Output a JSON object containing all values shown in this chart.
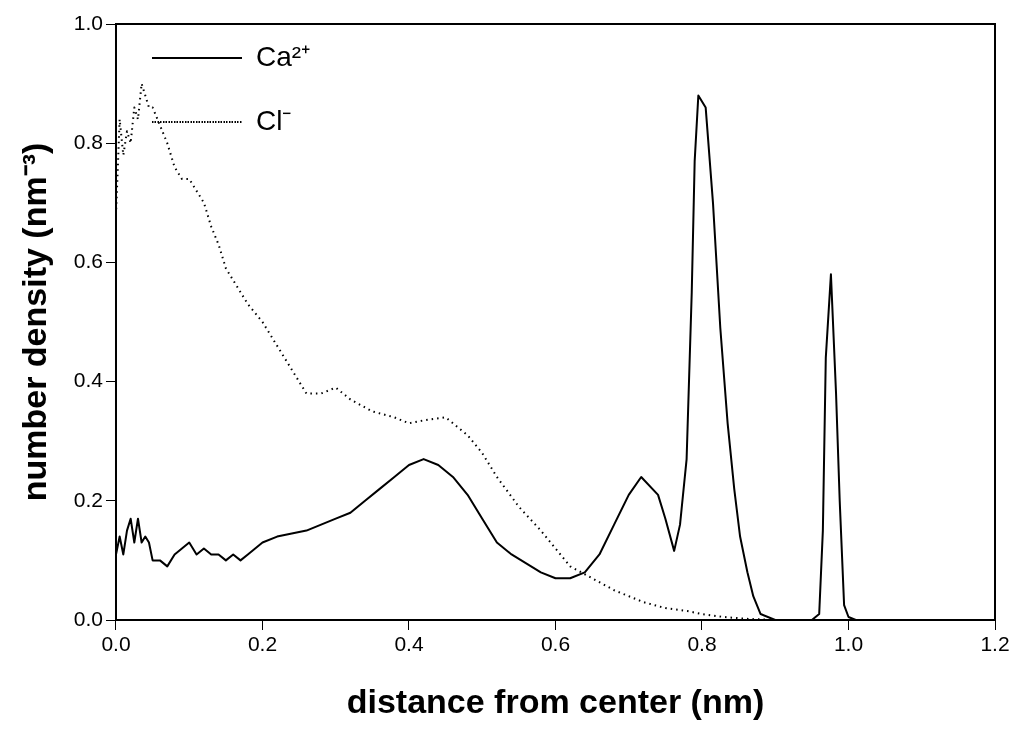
{
  "chart_data": {
    "type": "line",
    "xlabel": "distance from center (nm)",
    "ylabel": "number density (nm⁻³)",
    "xlim": [
      0,
      1.2
    ],
    "ylim": [
      0,
      1.0
    ],
    "xticks": [
      {
        "value": 0,
        "label": "0.0"
      },
      {
        "value": 0.2,
        "label": "0.2"
      },
      {
        "value": 0.4,
        "label": "0.4"
      },
      {
        "value": 0.6,
        "label": "0.6"
      },
      {
        "value": 0.8,
        "label": "0.8"
      },
      {
        "value": 1.0,
        "label": "1.0"
      },
      {
        "value": 1.2,
        "label": "1.2"
      }
    ],
    "yticks": [
      {
        "value": 0,
        "label": "0.0"
      },
      {
        "value": 0.2,
        "label": "0.2"
      },
      {
        "value": 0.4,
        "label": "0.4"
      },
      {
        "value": 0.6,
        "label": "0.6"
      },
      {
        "value": 0.8,
        "label": "0.8"
      },
      {
        "value": 1.0,
        "label": "1.0"
      }
    ],
    "grid": false,
    "legend": "top left",
    "marker": "none",
    "series": [
      {
        "name": "Ca²⁺",
        "color": "#000000",
        "line_style": "solid",
        "x": [
          0,
          0.005,
          0.01,
          0.015,
          0.02,
          0.025,
          0.03,
          0.035,
          0.04,
          0.045,
          0.05,
          0.06,
          0.07,
          0.08,
          0.09,
          0.1,
          0.11,
          0.12,
          0.13,
          0.14,
          0.15,
          0.16,
          0.17,
          0.18,
          0.19,
          0.2,
          0.22,
          0.24,
          0.26,
          0.28,
          0.3,
          0.32,
          0.34,
          0.36,
          0.38,
          0.4,
          0.42,
          0.44,
          0.46,
          0.48,
          0.5,
          0.52,
          0.54,
          0.56,
          0.58,
          0.6,
          0.62,
          0.64,
          0.66,
          0.68,
          0.7,
          0.717,
          0.74,
          0.75,
          0.762,
          0.77,
          0.779,
          0.786,
          0.79,
          0.795,
          0.805,
          0.815,
          0.825,
          0.835,
          0.844,
          0.852,
          0.862,
          0.87,
          0.88,
          0.9,
          0.95,
          0.96,
          0.965,
          0.969,
          0.976,
          0.983,
          0.988,
          0.994,
          1.0,
          1.01,
          1.2
        ],
        "values": [
          0.11,
          0.14,
          0.11,
          0.15,
          0.17,
          0.13,
          0.17,
          0.13,
          0.14,
          0.13,
          0.1,
          0.1,
          0.09,
          0.11,
          0.12,
          0.13,
          0.11,
          0.12,
          0.11,
          0.11,
          0.1,
          0.11,
          0.1,
          0.11,
          0.12,
          0.13,
          0.14,
          0.145,
          0.15,
          0.16,
          0.17,
          0.18,
          0.2,
          0.22,
          0.24,
          0.26,
          0.27,
          0.26,
          0.24,
          0.21,
          0.17,
          0.13,
          0.11,
          0.095,
          0.08,
          0.07,
          0.07,
          0.08,
          0.11,
          0.16,
          0.21,
          0.24,
          0.21,
          0.17,
          0.116,
          0.16,
          0.27,
          0.55,
          0.77,
          0.88,
          0.86,
          0.7,
          0.49,
          0.33,
          0.22,
          0.14,
          0.08,
          0.04,
          0.01,
          0,
          0,
          0.01,
          0.15,
          0.44,
          0.58,
          0.38,
          0.2,
          0.025,
          0.005,
          0,
          0
        ]
      },
      {
        "name": "Cl⁻",
        "color": "#000000",
        "line_style": "dotted",
        "x": [
          0,
          0.005,
          0.01,
          0.015,
          0.02,
          0.025,
          0.03,
          0.035,
          0.04,
          0.045,
          0.05,
          0.06,
          0.07,
          0.08,
          0.09,
          0.1,
          0.11,
          0.12,
          0.13,
          0.14,
          0.15,
          0.16,
          0.18,
          0.2,
          0.22,
          0.24,
          0.26,
          0.28,
          0.3,
          0.32,
          0.35,
          0.38,
          0.4,
          0.42,
          0.45,
          0.48,
          0.5,
          0.52,
          0.55,
          0.58,
          0.6,
          0.62,
          0.65,
          0.68,
          0.7,
          0.72,
          0.75,
          0.78,
          0.8,
          0.83,
          0.86,
          0.9
        ],
        "values": [
          0.68,
          0.84,
          0.78,
          0.82,
          0.8,
          0.86,
          0.84,
          0.9,
          0.88,
          0.86,
          0.86,
          0.83,
          0.8,
          0.76,
          0.74,
          0.74,
          0.72,
          0.7,
          0.66,
          0.63,
          0.59,
          0.57,
          0.53,
          0.5,
          0.46,
          0.42,
          0.38,
          0.38,
          0.39,
          0.37,
          0.35,
          0.34,
          0.33,
          0.335,
          0.34,
          0.31,
          0.28,
          0.24,
          0.19,
          0.15,
          0.12,
          0.09,
          0.07,
          0.05,
          0.04,
          0.03,
          0.02,
          0.015,
          0.01,
          0.005,
          0.002,
          0
        ]
      }
    ]
  }
}
